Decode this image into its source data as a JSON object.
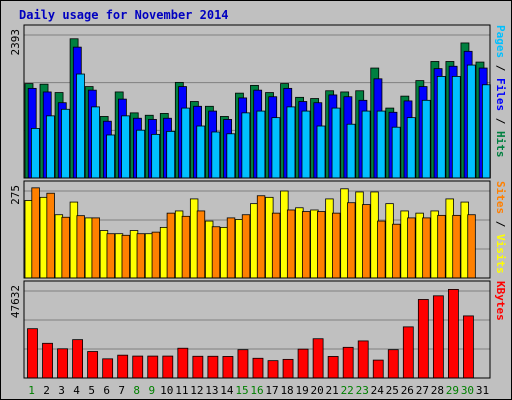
{
  "chart_data": [
    {
      "type": "bar",
      "title": "Daily usage for November 2014",
      "categories": [
        "1",
        "2",
        "3",
        "4",
        "5",
        "6",
        "7",
        "8",
        "9",
        "10",
        "11",
        "12",
        "13",
        "14",
        "15",
        "16",
        "17",
        "18",
        "19",
        "20",
        "21",
        "22",
        "23",
        "24",
        "25",
        "26",
        "27",
        "28",
        "29",
        "30",
        "31"
      ],
      "x_label_colors": [
        "#008000",
        "#000000",
        "#000000",
        "#000000",
        "#000000",
        "#000000",
        "#000000",
        "#008000",
        "#008000",
        "#000000",
        "#000000",
        "#000000",
        "#000000",
        "#000000",
        "#008000",
        "#008000",
        "#000000",
        "#000000",
        "#000000",
        "#000000",
        "#000000",
        "#008000",
        "#008000",
        "#000000",
        "#000000",
        "#000000",
        "#000000",
        "#000000",
        "#008000",
        "#008000",
        "#000000"
      ],
      "ymax_label": "2393",
      "ylabel_parts": [
        {
          "text": "Pages",
          "color": "#00c0ff"
        },
        {
          "text": " / ",
          "color": "#000000"
        },
        {
          "text": "Files",
          "color": "#0000ff"
        },
        {
          "text": " / ",
          "color": "#000000"
        },
        {
          "text": "Hits",
          "color": "#008040"
        }
      ],
      "ylim": [
        0,
        2393
      ],
      "series": [
        {
          "name": "Hits",
          "color": "#008040",
          "values": [
            1580,
            1570,
            1430,
            2330,
            1530,
            1030,
            1440,
            1090,
            1050,
            1080,
            1600,
            1280,
            1200,
            1030,
            1420,
            1550,
            1430,
            1580,
            1350,
            1330,
            1460,
            1440,
            1460,
            1840,
            1170,
            1370,
            1630,
            1950,
            1950,
            2260,
            1940
          ]
        },
        {
          "name": "Files",
          "color": "#0000ff",
          "values": [
            1500,
            1440,
            1260,
            2190,
            1470,
            950,
            1320,
            1000,
            980,
            1000,
            1530,
            1200,
            1120,
            980,
            1340,
            1470,
            1360,
            1500,
            1280,
            1260,
            1390,
            1360,
            1300,
            1660,
            1100,
            1290,
            1530,
            1830,
            1870,
            2120,
            1840
          ]
        },
        {
          "name": "Pages",
          "color": "#00c0ff",
          "values": [
            830,
            1040,
            1150,
            1740,
            1190,
            720,
            1040,
            800,
            730,
            780,
            1170,
            870,
            770,
            740,
            1090,
            1120,
            1010,
            1190,
            1120,
            870,
            1170,
            900,
            1120,
            1120,
            850,
            1010,
            1300,
            1700,
            1700,
            1890,
            1560
          ]
        }
      ]
    },
    {
      "type": "bar",
      "ymax_label": "275",
      "ylabel_parts": [
        {
          "text": "Sites",
          "color": "#ff8000"
        },
        {
          "text": " / ",
          "color": "#000000"
        },
        {
          "text": "Visits",
          "color": "#ffff00"
        }
      ],
      "ylim": [
        0,
        275
      ],
      "series": [
        {
          "name": "Visits",
          "color": "#ffff00",
          "values": [
            245,
            255,
            200,
            240,
            190,
            150,
            140,
            150,
            140,
            160,
            212,
            250,
            180,
            160,
            185,
            235,
            255,
            275,
            222,
            215,
            250,
            282,
            272,
            272,
            235,
            212,
            205,
            212,
            250,
            240,
            0
          ]
        },
        {
          "name": "Sites",
          "color": "#ff8000",
          "values": [
            285,
            268,
            192,
            197,
            190,
            140,
            135,
            140,
            145,
            205,
            195,
            212,
            162,
            190,
            200,
            260,
            205,
            215,
            210,
            210,
            205,
            238,
            232,
            180,
            170,
            190,
            190,
            198,
            198,
            200,
            0
          ]
        }
      ]
    },
    {
      "type": "bar",
      "ymax_label": "47632",
      "ylabel_parts": [
        {
          "text": "KBytes",
          "color": "#ff0000"
        }
      ],
      "ylim": [
        0,
        47632
      ],
      "series": [
        {
          "name": "KBytes",
          "color": "#ff0000",
          "values": [
            27000,
            19000,
            16000,
            21000,
            14500,
            10500,
            12500,
            12000,
            12000,
            12000,
            16300,
            11900,
            11900,
            11800,
            15500,
            10800,
            9500,
            10200,
            15800,
            21500,
            11800,
            16800,
            20300,
            9800,
            15500,
            28000,
            43000,
            45000,
            48500,
            34000,
            0
          ]
        }
      ]
    }
  ]
}
